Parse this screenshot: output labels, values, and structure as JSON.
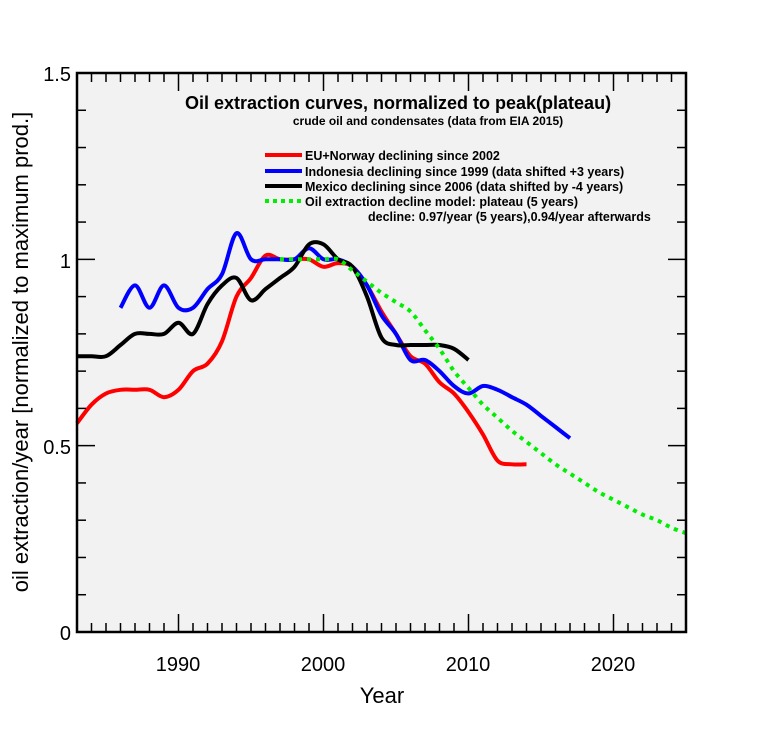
{
  "chart_data": {
    "type": "line",
    "title": "Oil extraction curves, normalized to peak(plateau)",
    "subtitle": "crude oil and condensates (data from EIA 2015)",
    "xlabel": "Year",
    "ylabel": "oil extraction/year  [normalized to maximum prod.]",
    "xlim": [
      1983,
      2025
    ],
    "ylim": [
      0,
      1.5
    ],
    "x_ticks": [
      1990,
      2000,
      2010,
      2020
    ],
    "y_ticks": [
      0,
      0.5,
      1,
      1.5
    ],
    "x_tick_labels": [
      "1990",
      "2000",
      "2010",
      "2020"
    ],
    "y_tick_labels": [
      "0",
      "0.5",
      "1",
      "1.5"
    ],
    "grid": false,
    "legend_position": "top-right",
    "series": [
      {
        "name": "EU+Norway declining since 2002",
        "color": "#ff0000",
        "style": "solid",
        "x": [
          1983,
          1984,
          1985,
          1986,
          1987,
          1988,
          1989,
          1990,
          1991,
          1992,
          1993,
          1994,
          1995,
          1996,
          1997,
          1998,
          1999,
          2000,
          2001,
          2002,
          2003,
          2004,
          2005,
          2006,
          2007,
          2008,
          2009,
          2010,
          2011,
          2012,
          2013,
          2014
        ],
        "y": [
          0.56,
          0.61,
          0.64,
          0.65,
          0.65,
          0.65,
          0.63,
          0.65,
          0.7,
          0.72,
          0.78,
          0.9,
          0.95,
          1.01,
          1.0,
          1.0,
          1.0,
          0.98,
          0.99,
          0.98,
          0.93,
          0.86,
          0.8,
          0.74,
          0.72,
          0.67,
          0.64,
          0.59,
          0.53,
          0.46,
          0.45,
          0.45
        ]
      },
      {
        "name": "Indonesia declining since 1999 (data shifted +3 years)",
        "color": "#0000ff",
        "style": "solid",
        "x": [
          1986,
          1987,
          1988,
          1989,
          1990,
          1991,
          1992,
          1993,
          1994,
          1995,
          1996,
          1997,
          1998,
          1999,
          2000,
          2001,
          2002,
          2003,
          2004,
          2005,
          2006,
          2007,
          2008,
          2009,
          2010,
          2011,
          2012,
          2013,
          2014,
          2015,
          2016,
          2017
        ],
        "y": [
          0.87,
          0.93,
          0.87,
          0.93,
          0.87,
          0.87,
          0.92,
          0.96,
          1.07,
          1.0,
          1.0,
          1.0,
          1.0,
          1.03,
          1.0,
          1.0,
          0.98,
          0.93,
          0.85,
          0.8,
          0.73,
          0.73,
          0.7,
          0.66,
          0.64,
          0.66,
          0.65,
          0.63,
          0.61,
          0.58,
          0.55,
          0.52
        ]
      },
      {
        "name": "Mexico declining since 2006 (data shifted by -4 years)",
        "color": "#000000",
        "style": "solid",
        "x": [
          1983,
          1984,
          1985,
          1986,
          1987,
          1988,
          1989,
          1990,
          1991,
          1992,
          1993,
          1994,
          1995,
          1996,
          1997,
          1998,
          1999,
          2000,
          2001,
          2002,
          2003,
          2004,
          2005,
          2006,
          2007,
          2008,
          2009,
          2010
        ],
        "y": [
          0.74,
          0.74,
          0.74,
          0.77,
          0.8,
          0.8,
          0.8,
          0.83,
          0.8,
          0.88,
          0.93,
          0.95,
          0.89,
          0.92,
          0.95,
          0.98,
          1.04,
          1.04,
          1.0,
          0.98,
          0.9,
          0.79,
          0.77,
          0.77,
          0.77,
          0.77,
          0.76,
          0.73
        ]
      },
      {
        "name": "Oil extraction decline model: plateau (5 years)",
        "color": "#00ee00",
        "style": "dotted",
        "x": [
          1997,
          1998,
          1999,
          2000,
          2001,
          2002,
          2003,
          2004,
          2005,
          2006,
          2007,
          2008,
          2009,
          2010,
          2011,
          2012,
          2013,
          2014,
          2015,
          2016,
          2017,
          2018,
          2019,
          2020,
          2021,
          2022,
          2023,
          2024,
          2025
        ],
        "y": [
          1.0,
          1.0,
          1.0,
          1.0,
          1.0,
          0.97,
          0.94,
          0.91,
          0.885,
          0.86,
          0.81,
          0.76,
          0.7,
          0.655,
          0.61,
          0.575,
          0.54,
          0.51,
          0.48,
          0.45,
          0.425,
          0.4,
          0.375,
          0.355,
          0.335,
          0.315,
          0.3,
          0.28,
          0.265
        ]
      }
    ],
    "legend_extra": "decline: 0.97/year (5 years),0.94/year afterwards"
  }
}
